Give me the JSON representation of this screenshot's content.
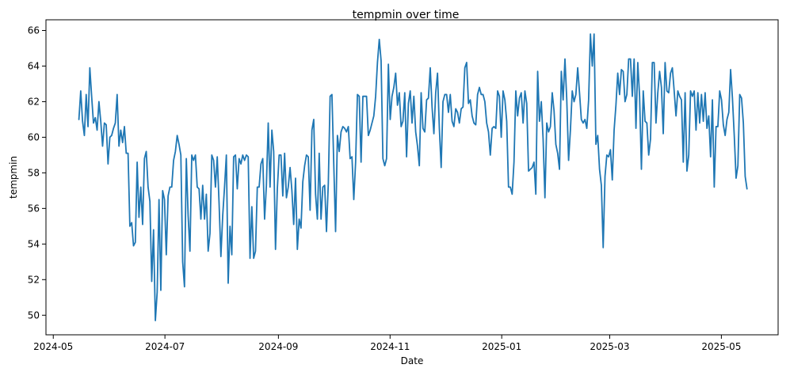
{
  "chart_data": {
    "type": "line",
    "title": "tempmin over time",
    "xlabel": "Date",
    "ylabel": "tempmin",
    "x_start": "2024-05-15",
    "x_end": "2025-05-15",
    "xlim": [
      "2024-04-27",
      "2025-06-01"
    ],
    "ylim": [
      48.9,
      66.6
    ],
    "x_ticks": [
      "2024-05",
      "2024-07",
      "2024-09",
      "2024-11",
      "2025-01",
      "2025-03",
      "2025-05"
    ],
    "y_ticks": [
      50,
      52,
      54,
      56,
      58,
      60,
      62,
      64,
      66
    ],
    "grid": false,
    "line_color": "#1f77b4",
    "series": [
      {
        "values": [
          61,
          62.6,
          60.9,
          60.1,
          62.4,
          60.6,
          63.9,
          62.3,
          60.8,
          61.1,
          60.4,
          62,
          60.9,
          59.5,
          60.8,
          60.7,
          58.5,
          60,
          60.1,
          60.5,
          60.8,
          62.4,
          59.5,
          60.4,
          59.7,
          60.6,
          59.1,
          59.1,
          55,
          55.2,
          53.9,
          54.1,
          58.6,
          55.5,
          57.2,
          55.1,
          58.8,
          59.2,
          57.2,
          56.4,
          51.9,
          54.8,
          49.7,
          51.3,
          56.5,
          51.4,
          57,
          56.5,
          53.4,
          56.7,
          57.2,
          57.2,
          58.7,
          59.2,
          60.1,
          59.6,
          59,
          53,
          51.6,
          58.8,
          55.6,
          53.6,
          59,
          58.7,
          59,
          57.2,
          57.1,
          55.4,
          57.3,
          55.4,
          56.8,
          53.6,
          54.6,
          59,
          58.7,
          57.2,
          58.9,
          56.3,
          53.3,
          55.6,
          57.2,
          59,
          51.8,
          55,
          53.4,
          58.9,
          59,
          57.1,
          58.8,
          58.5,
          59,
          58.7,
          59,
          58.9,
          53.2,
          56.1,
          53.2,
          53.6,
          57.2,
          57.2,
          58.5,
          58.8,
          55.4,
          57.3,
          60.8,
          57.2,
          60.4,
          59.2,
          53.7,
          57.1,
          59,
          59,
          56.7,
          59.1,
          56.6,
          57.2,
          58.3,
          57,
          55.1,
          57.7,
          53.7,
          55.4,
          54.9,
          57.5,
          58.4,
          59,
          58.9,
          55.9,
          60.4,
          61,
          56.8,
          55.4,
          59.1,
          55.4,
          57.2,
          57.3,
          54.7,
          57.4,
          62.3,
          62.4,
          58.5,
          54.7,
          60.1,
          59.2,
          60.3,
          60.6,
          60.5,
          60.3,
          60.6,
          58.8,
          58.9,
          56.5,
          58.6,
          62.4,
          62.3,
          58.6,
          62.3,
          62.3,
          62.3,
          60.1,
          60.4,
          60.8,
          61.2,
          62.3,
          64.2,
          65.5,
          64.3,
          58.8,
          58.4,
          58.8,
          64.1,
          61,
          62.3,
          62.8,
          63.6,
          61.8,
          62.5,
          60.6,
          60.9,
          62.5,
          58.9,
          61.9,
          62.6,
          60.8,
          62.3,
          60.3,
          59.5,
          58.4,
          62.5,
          60.5,
          60.3,
          62.1,
          62.2,
          63.9,
          61.7,
          60.2,
          62.5,
          63.6,
          60.5,
          58.3,
          62,
          62.4,
          62.4,
          61.4,
          62.4,
          60.9,
          60.6,
          61.6,
          61.4,
          60.8,
          61.6,
          61.7,
          63.9,
          64.2,
          61.9,
          62.1,
          61.2,
          60.8,
          60.7,
          62.4,
          62.8,
          62.4,
          62.4,
          62,
          60.8,
          60.3,
          59,
          60.5,
          60.6,
          60.5,
          62.6,
          62.3,
          60,
          62.6,
          62.1,
          60.9,
          57.2,
          57.2,
          56.8,
          58.6,
          62.6,
          61.2,
          62.2,
          62.5,
          60.8,
          62.6,
          61.9,
          58.1,
          58.2,
          58.3,
          58.6,
          56.8,
          63.7,
          60.9,
          62,
          59.9,
          56.6,
          60.8,
          60.3,
          60.6,
          62.5,
          61.5,
          59.6,
          59.1,
          58.2,
          63.7,
          62.1,
          64.4,
          62.1,
          58.7,
          60.4,
          62.6,
          62,
          62.4,
          63.9,
          62.5,
          61,
          60.8,
          61,
          60.5,
          62.1,
          65.8,
          64,
          65.8,
          59.6,
          60.1,
          58.2,
          57.3,
          53.8,
          57.8,
          59,
          58.9,
          59.3,
          57.6,
          60.4,
          61.8,
          63.6,
          62.4,
          63.8,
          63.7,
          62,
          62.4,
          64.4,
          64.4,
          62.3,
          64.4,
          60.5,
          64.2,
          62.3,
          58.2,
          62.6,
          60.9,
          60.8,
          59,
          59.9,
          64.2,
          64.2,
          60.8,
          62.5,
          63.7,
          62.8,
          60.2,
          64.2,
          62.6,
          62.5,
          63.6,
          63.9,
          62.6,
          61.2,
          62.6,
          62.3,
          62.1,
          58.6,
          62.5,
          58.1,
          59,
          62.6,
          62.3,
          62.6,
          60.4,
          62.5,
          60.8,
          62.4,
          60.9,
          62.5,
          60.5,
          61.2,
          58.9,
          62.1,
          57.2,
          60.6,
          60.6,
          62.6,
          62.1,
          60.7,
          60.1,
          61,
          61.4,
          63.8,
          62.2,
          60.1,
          57.7,
          58.4,
          62.4,
          62.2,
          60.8,
          57.8,
          57.1
        ]
      }
    ]
  }
}
